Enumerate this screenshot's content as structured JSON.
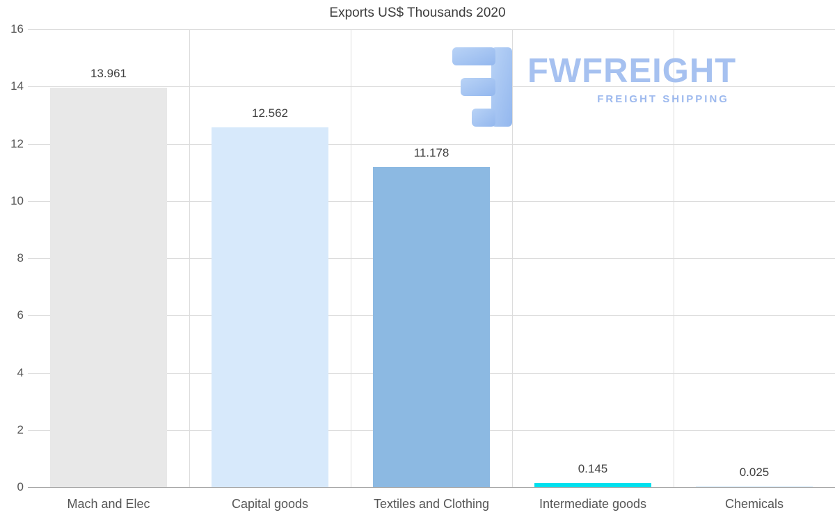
{
  "logo": {
    "name": "FWFREIGHT",
    "tagline": "FREIGHT SHIPPING",
    "text_color": "#a6c1f0",
    "icon_color": "#9fc0f0"
  },
  "chart_data": {
    "type": "bar",
    "title": "Exports US$ Thousands 2020",
    "categories": [
      "Mach and Elec",
      "Capital goods",
      "Textiles and Clothing",
      "Intermediate goods",
      "Chemicals"
    ],
    "values": [
      13.961,
      12.562,
      11.178,
      0.145,
      0.025
    ],
    "value_labels": [
      "13.961",
      "12.562",
      "11.178",
      "0.145",
      "0.025"
    ],
    "bar_colors": [
      "#e8e8e8",
      "#d7e9fb",
      "#8cb9e2",
      "#00e0ee",
      "#cde4f7"
    ],
    "ylim": [
      0,
      16
    ],
    "yticks": [
      0,
      2,
      4,
      6,
      8,
      10,
      12,
      14,
      16
    ],
    "grid": true,
    "legend": false,
    "xlabel": "",
    "ylabel": ""
  }
}
